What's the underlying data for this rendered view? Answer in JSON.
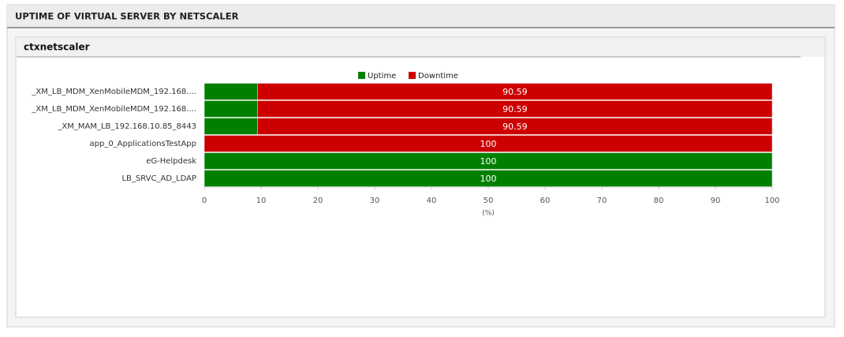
{
  "panel": {
    "title": "UPTIME OF VIRTUAL SERVER BY NETSCALER",
    "subtitle": "ctxnetscaler"
  },
  "chart_data": {
    "type": "stacked-barh",
    "categories": [
      "_XM_LB_MDM_XenMobileMDM_192.168....",
      "_XM_LB_MDM_XenMobileMDM_192.168....",
      "_XM_MAM_LB_192.168.10.85_8443",
      "app_0_ApplicationsTestApp",
      "eG-Helpdesk",
      "LB_SRVC_AD_LDAP"
    ],
    "series": [
      {
        "name": "Uptime",
        "color": "#008000",
        "values": [
          9.41,
          9.41,
          9.41,
          0,
          100,
          100
        ]
      },
      {
        "name": "Downtime",
        "color": "#cc0000",
        "values": [
          90.59,
          90.59,
          90.59,
          100,
          0,
          0
        ]
      }
    ],
    "xlim": [
      0,
      100
    ],
    "xticks": [
      0,
      10,
      20,
      30,
      40,
      50,
      60,
      70,
      80,
      90,
      100
    ],
    "xlabel": "(%)",
    "legend": "top"
  }
}
